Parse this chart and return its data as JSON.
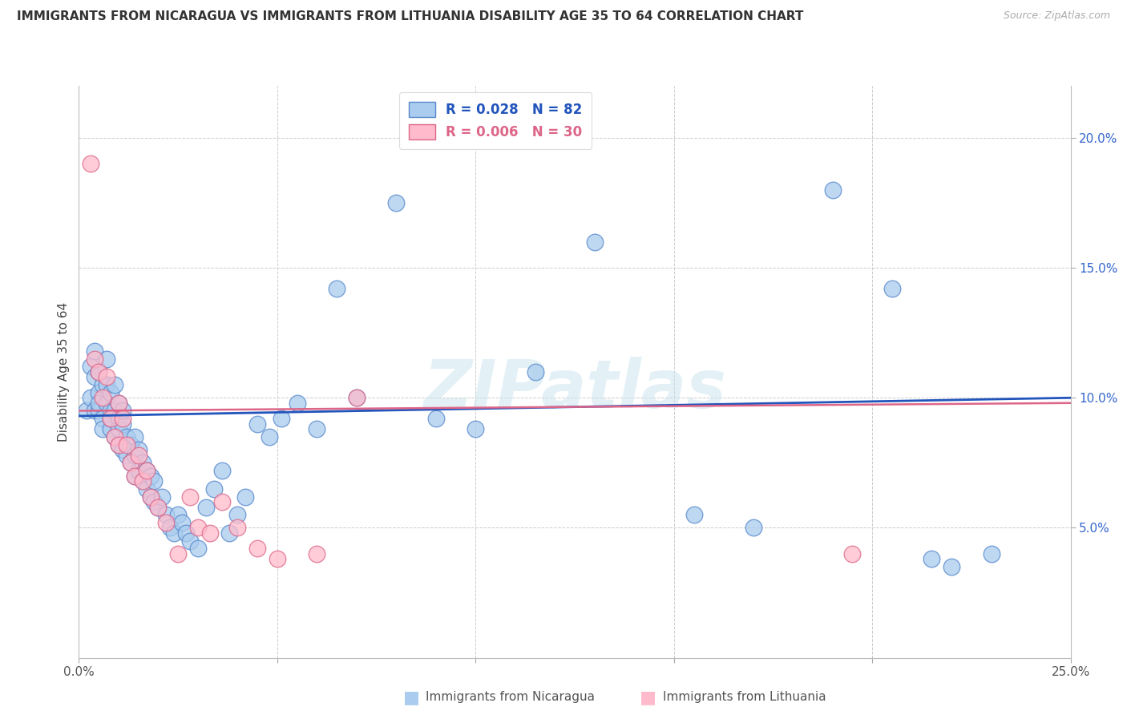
{
  "title": "IMMIGRANTS FROM NICARAGUA VS IMMIGRANTS FROM LITHUANIA DISABILITY AGE 35 TO 64 CORRELATION CHART",
  "source": "Source: ZipAtlas.com",
  "ylabel": "Disability Age 35 to 64",
  "watermark": "ZIPatlas",
  "xlim": [
    0.0,
    0.25
  ],
  "ylim": [
    0.0,
    0.22
  ],
  "nicaragua_color": "#aaccee",
  "nicaragua_edge": "#5588cc",
  "nicaragua_trendline": "#2255bb",
  "lithuania_color": "#ffbbcc",
  "lithuania_edge": "#dd6688",
  "lithuania_trendline": "#dd6688",
  "legend1_r": "0.028",
  "legend1_n": "82",
  "legend2_r": "0.006",
  "legend2_n": "30",
  "nicaragua_x": [
    0.002,
    0.003,
    0.003,
    0.004,
    0.004,
    0.004,
    0.005,
    0.005,
    0.005,
    0.005,
    0.006,
    0.006,
    0.006,
    0.007,
    0.007,
    0.007,
    0.008,
    0.008,
    0.008,
    0.008,
    0.009,
    0.009,
    0.009,
    0.01,
    0.01,
    0.01,
    0.01,
    0.011,
    0.011,
    0.011,
    0.012,
    0.012,
    0.013,
    0.013,
    0.014,
    0.014,
    0.014,
    0.015,
    0.015,
    0.016,
    0.016,
    0.017,
    0.017,
    0.018,
    0.018,
    0.019,
    0.019,
    0.02,
    0.021,
    0.022,
    0.023,
    0.024,
    0.025,
    0.026,
    0.027,
    0.028,
    0.03,
    0.032,
    0.034,
    0.036,
    0.038,
    0.04,
    0.042,
    0.045,
    0.048,
    0.051,
    0.055,
    0.06,
    0.065,
    0.07,
    0.08,
    0.09,
    0.1,
    0.115,
    0.13,
    0.155,
    0.17,
    0.19,
    0.205,
    0.215,
    0.22,
    0.23
  ],
  "nicaragua_y": [
    0.095,
    0.112,
    0.1,
    0.108,
    0.095,
    0.118,
    0.102,
    0.095,
    0.11,
    0.098,
    0.092,
    0.105,
    0.088,
    0.115,
    0.098,
    0.105,
    0.095,
    0.088,
    0.102,
    0.092,
    0.085,
    0.095,
    0.105,
    0.082,
    0.092,
    0.098,
    0.088,
    0.08,
    0.09,
    0.095,
    0.078,
    0.085,
    0.075,
    0.082,
    0.07,
    0.078,
    0.085,
    0.072,
    0.08,
    0.068,
    0.075,
    0.065,
    0.072,
    0.062,
    0.07,
    0.06,
    0.068,
    0.058,
    0.062,
    0.055,
    0.05,
    0.048,
    0.055,
    0.052,
    0.048,
    0.045,
    0.042,
    0.058,
    0.065,
    0.072,
    0.048,
    0.055,
    0.062,
    0.09,
    0.085,
    0.092,
    0.098,
    0.088,
    0.142,
    0.1,
    0.175,
    0.092,
    0.088,
    0.11,
    0.16,
    0.055,
    0.05,
    0.18,
    0.142,
    0.038,
    0.035,
    0.04
  ],
  "lithuania_x": [
    0.003,
    0.004,
    0.005,
    0.006,
    0.007,
    0.008,
    0.009,
    0.01,
    0.01,
    0.011,
    0.012,
    0.013,
    0.014,
    0.015,
    0.016,
    0.017,
    0.018,
    0.02,
    0.022,
    0.025,
    0.028,
    0.03,
    0.033,
    0.036,
    0.04,
    0.045,
    0.05,
    0.06,
    0.07,
    0.195
  ],
  "lithuania_y": [
    0.19,
    0.115,
    0.11,
    0.1,
    0.108,
    0.092,
    0.085,
    0.098,
    0.082,
    0.092,
    0.082,
    0.075,
    0.07,
    0.078,
    0.068,
    0.072,
    0.062,
    0.058,
    0.052,
    0.04,
    0.062,
    0.05,
    0.048,
    0.06,
    0.05,
    0.042,
    0.038,
    0.04,
    0.1,
    0.04
  ]
}
